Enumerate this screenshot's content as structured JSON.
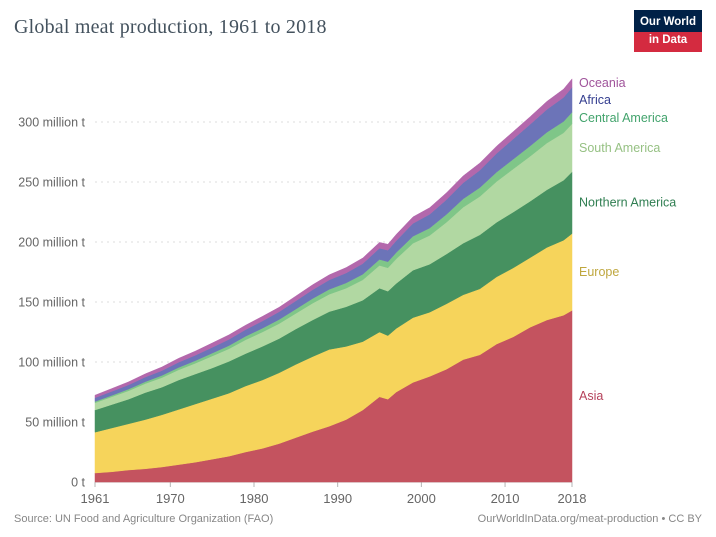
{
  "logo": {
    "line1": "Our World",
    "line2": "in Data"
  },
  "footer": {
    "source": "Source: UN Food and Agriculture Organization (FAO)",
    "attribution": "OurWorldInData.org/meat-production • CC BY"
  },
  "colors": {
    "navy": "#002147",
    "logo_red": "#D42B40",
    "grid": "#dcdcdc",
    "axis": "#b5b5b5",
    "tick_text": "#666666"
  },
  "chart_data": {
    "type": "area",
    "stacked": true,
    "title": "Global meat production, 1961 to 2018",
    "xlabel": "",
    "ylabel": "",
    "grid": true,
    "legend_position": "right",
    "unit": "million tonnes",
    "ylim": [
      0,
      340
    ],
    "x": [
      1961,
      1963,
      1965,
      1967,
      1969,
      1971,
      1973,
      1975,
      1977,
      1979,
      1981,
      1983,
      1985,
      1987,
      1989,
      1991,
      1993,
      1995,
      1996,
      1997,
      1999,
      2001,
      2003,
      2005,
      2007,
      2009,
      2011,
      2013,
      2015,
      2017,
      2018
    ],
    "xticks": [
      1961,
      1970,
      1980,
      1990,
      2000,
      2010,
      2018
    ],
    "yticks": [
      {
        "value": 0,
        "label": "0 t"
      },
      {
        "value": 50,
        "label": "50 million t"
      },
      {
        "value": 100,
        "label": "100 million t"
      },
      {
        "value": 150,
        "label": "150 million t"
      },
      {
        "value": 200,
        "label": "200 million t"
      },
      {
        "value": 250,
        "label": "250 million t"
      },
      {
        "value": 300,
        "label": "300 million t"
      }
    ],
    "series": [
      {
        "name": "Asia",
        "color": "#C4535F",
        "label_color": "#B5415A",
        "values": [
          7.5,
          8.5,
          10,
          11,
          12.5,
          14.5,
          16.5,
          19,
          21.5,
          25,
          28,
          32,
          37,
          42,
          46.5,
          52,
          60,
          71,
          69,
          75,
          83,
          88,
          94,
          102,
          106,
          115,
          121,
          129,
          135,
          139,
          143
        ]
      },
      {
        "name": "Europe",
        "color": "#F6D45B",
        "label_color": "#BFA73E",
        "values": [
          34,
          36.5,
          38.5,
          41,
          43.5,
          46,
          48.5,
          50.5,
          52.5,
          55,
          57,
          59,
          61,
          62.5,
          64,
          61,
          57,
          54,
          53,
          53,
          54,
          53.5,
          54.5,
          54,
          55,
          56,
          57.5,
          58,
          60.5,
          62.5,
          64
        ]
      },
      {
        "name": "Northern America",
        "color": "#469160",
        "label_color": "#2F7E51",
        "values": [
          18.5,
          19.5,
          20.5,
          22.5,
          23,
          24.5,
          25,
          25.5,
          26.5,
          27,
          28,
          28.5,
          29.5,
          30.5,
          31.5,
          33,
          34.5,
          36.5,
          37,
          37.5,
          39.5,
          40,
          41.5,
          43,
          45,
          45.5,
          46.5,
          47,
          48,
          50,
          51.5
        ]
      },
      {
        "name": "South America",
        "color": "#B1D8A2",
        "label_color": "#96C183",
        "values": [
          6,
          6.5,
          7,
          7.5,
          8,
          8.5,
          9,
          10,
          10.5,
          11.5,
          12,
          12.5,
          13,
          14,
          14.5,
          15.5,
          17,
          19,
          19.5,
          20.5,
          22.5,
          24,
          26.5,
          30,
          32,
          34,
          36,
          37.5,
          39,
          39.5,
          40
        ]
      },
      {
        "name": "Central America",
        "color": "#7FC688",
        "label_color": "#42A36C",
        "values": [
          1.1,
          1.2,
          1.4,
          1.6,
          1.8,
          2,
          2.2,
          2.4,
          2.7,
          3,
          3.2,
          3.4,
          3.6,
          3.9,
          4.1,
          4.4,
          4.7,
          5,
          5.1,
          5.3,
          5.8,
          6.2,
          6.6,
          7,
          7.4,
          7.8,
          8.2,
          8.6,
          9,
          9.5,
          9.7
        ]
      },
      {
        "name": "Africa",
        "color": "#6C74B8",
        "label_color": "#333D8F",
        "values": [
          3.1,
          3.3,
          3.5,
          3.8,
          4,
          4.3,
          4.5,
          4.8,
          5.1,
          5.5,
          6,
          6.4,
          6.8,
          7.3,
          7.8,
          8.3,
          8.8,
          9.3,
          9.6,
          9.9,
          10.7,
          11.4,
          12.2,
          13.3,
          14.4,
          15.6,
          16.8,
          18,
          19,
          20,
          20.6
        ]
      },
      {
        "name": "Oceania",
        "color": "#B368AC",
        "label_color": "#A0549B",
        "values": [
          2.1,
          2.3,
          2.5,
          2.7,
          3,
          3.3,
          3.4,
          3.6,
          3.8,
          3.7,
          3.8,
          3.8,
          4,
          4.1,
          4.3,
          4.5,
          4.7,
          4.9,
          4.9,
          5.1,
          5.4,
          5.5,
          5.7,
          5.8,
          6,
          6,
          6.1,
          6.3,
          6.7,
          6.9,
          7.1
        ]
      }
    ]
  }
}
